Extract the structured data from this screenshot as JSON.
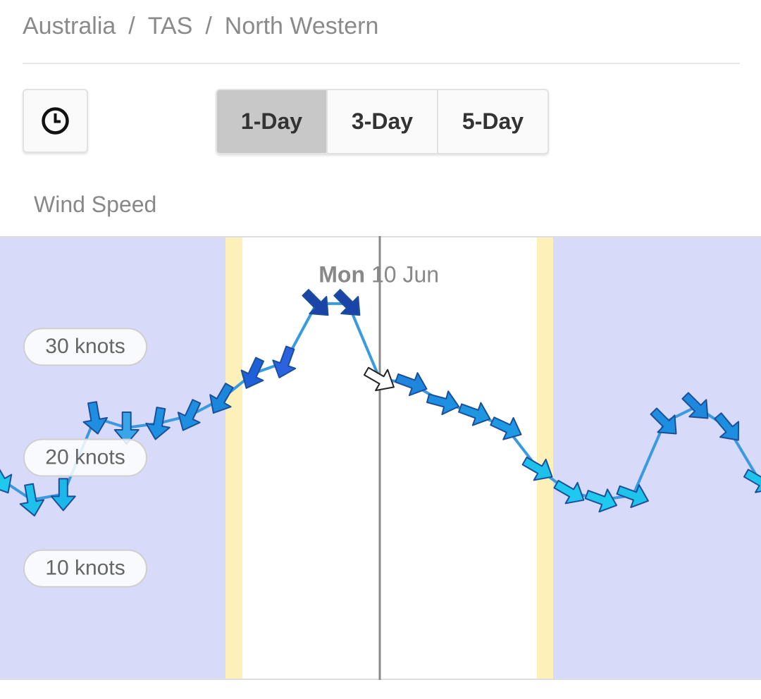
{
  "breadcrumb": [
    "Australia",
    "TAS",
    "North Western"
  ],
  "separator": "/",
  "range_buttons": {
    "options": [
      "1-Day",
      "3-Day",
      "5-Day"
    ],
    "selected": 0
  },
  "chart_label": "Wind Speed",
  "chart_data": {
    "type": "line",
    "title": "Wind Speed",
    "day_label": {
      "weekday": "Mon",
      "date": "10 Jun"
    },
    "values": [
      18.1,
      16.2,
      16.7,
      23.6,
      22.7,
      23.1,
      23.8,
      25.3,
      27.6,
      28.6,
      33.9,
      33.9,
      27.1,
      26.7,
      25.0,
      24.0,
      22.7,
      19.0,
      16.9,
      16.2,
      16.6,
      23.2,
      24.6,
      22.7,
      17.9
    ],
    "directions": [
      150,
      170,
      180,
      170,
      180,
      190,
      205,
      210,
      205,
      200,
      135,
      135,
      120,
      110,
      105,
      110,
      115,
      120,
      120,
      110,
      110,
      135,
      135,
      140,
      120
    ],
    "colors": [
      "#1ec8ee",
      "#1ec0ec",
      "#1ab8ea",
      "#1e8ee0",
      "#3aa6ea",
      "#1e90e2",
      "#1e8ee0",
      "#1a86dc",
      "#1f5fd8",
      "#2a62e0",
      "#1a44a8",
      "#1a44a8",
      "#ffffff",
      "#1e86dc",
      "#1e90e2",
      "#1e96e2",
      "#1e9ae4",
      "#1ec0ec",
      "#1ec8ee",
      "#1ecaee",
      "#1ec4ec",
      "#1e8ee0",
      "#1e88de",
      "#1e8ee0",
      "#1ec4ec"
    ],
    "line_color": "#3a9ae0",
    "ylim": [
      0,
      40
    ],
    "yticks": [
      {
        "value": 10,
        "label": "10 knots"
      },
      {
        "value": 20,
        "label": "20 knots"
      },
      {
        "value": 30,
        "label": "30 knots"
      }
    ],
    "grid": true
  }
}
